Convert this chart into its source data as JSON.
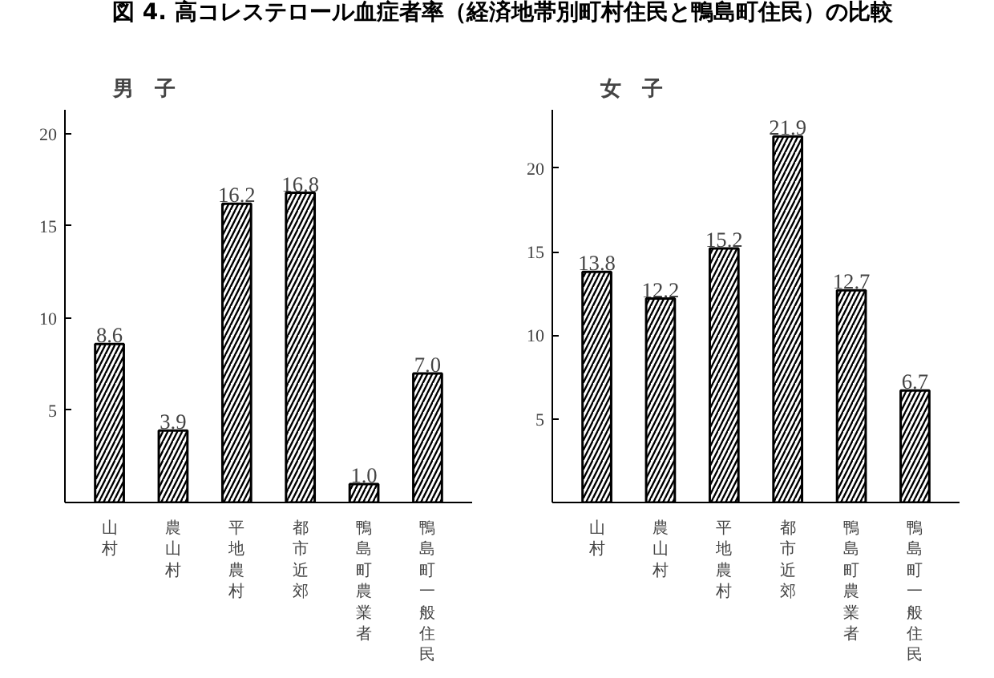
{
  "chart_data": [
    {
      "type": "bar",
      "title": "図 4. 高コレステロール血症者率（経済地帯別町村住民と鴨島町住民）の比較",
      "subtitle": "男　子",
      "categories": [
        "山村",
        "農山村",
        "平地農村",
        "都市近郊",
        "鴨島町農業者",
        "鴨島町一般住民"
      ],
      "values": [
        8.6,
        3.9,
        16.2,
        16.8,
        1.0,
        7.0
      ],
      "value_labels": [
        "8.6",
        "3.9",
        "16.2",
        "16.8",
        "1.0",
        "7.0"
      ],
      "color": "#000000",
      "ylim": [
        0,
        21.3
      ],
      "yticks": [
        5,
        10,
        15,
        20
      ],
      "grid": false
    },
    {
      "type": "bar",
      "subtitle": "女　子",
      "categories": [
        "山村",
        "農山村",
        "平地農村",
        "都市近郊",
        "鴨島町農業者",
        "鴨島町一般住民"
      ],
      "values": [
        13.8,
        12.2,
        15.2,
        21.9,
        12.7,
        6.7
      ],
      "value_labels": [
        "13.8",
        "12.2",
        "15.2",
        "21.9",
        "12.7",
        "6.7"
      ],
      "color": "#000000",
      "ylim": [
        0,
        23.5
      ],
      "yticks": [
        5,
        10,
        15,
        20
      ],
      "grid": false
    }
  ]
}
